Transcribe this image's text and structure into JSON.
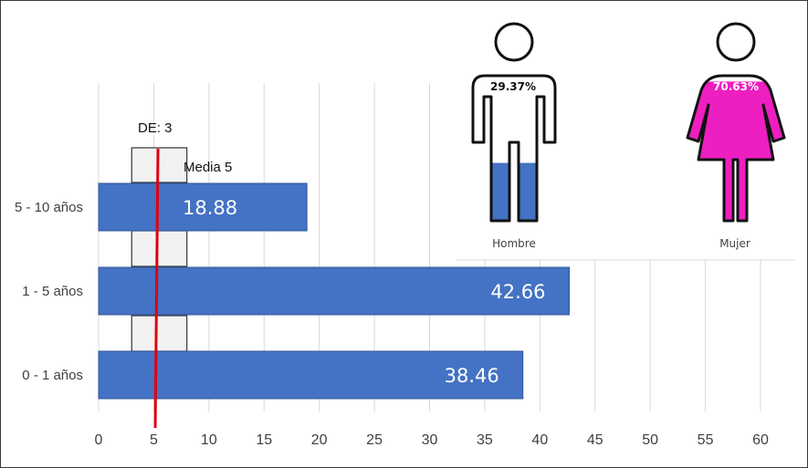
{
  "chart_data": [
    {
      "type": "bar",
      "orientation": "horizontal",
      "categories": [
        "5 - 10 años",
        "1 - 5 años",
        "0 - 1 años"
      ],
      "values": [
        18.88,
        42.66,
        38.46
      ],
      "value_labels": [
        "18.88",
        "42.66",
        "38.46"
      ],
      "xlim": [
        0,
        60
      ],
      "xticks": [
        0,
        5,
        10,
        15,
        20,
        25,
        30,
        35,
        40,
        45,
        50,
        55,
        60
      ],
      "grid": true,
      "bar_color": "#4472c4",
      "reference_line": {
        "label": "Media 5",
        "value": 5.3,
        "color": "#e0000f"
      },
      "deviation_band": {
        "label": "DE: 3",
        "low": 3,
        "high": 8
      }
    },
    {
      "type": "pictogram",
      "categories": [
        "Hombre",
        "Mujer"
      ],
      "values": [
        29.37,
        70.63
      ],
      "value_labels": [
        "29.37%",
        "70.63%"
      ],
      "fill_colors": [
        "#4472c4",
        "#ee1fc0"
      ],
      "icons": [
        "man-icon",
        "woman-icon"
      ]
    }
  ]
}
